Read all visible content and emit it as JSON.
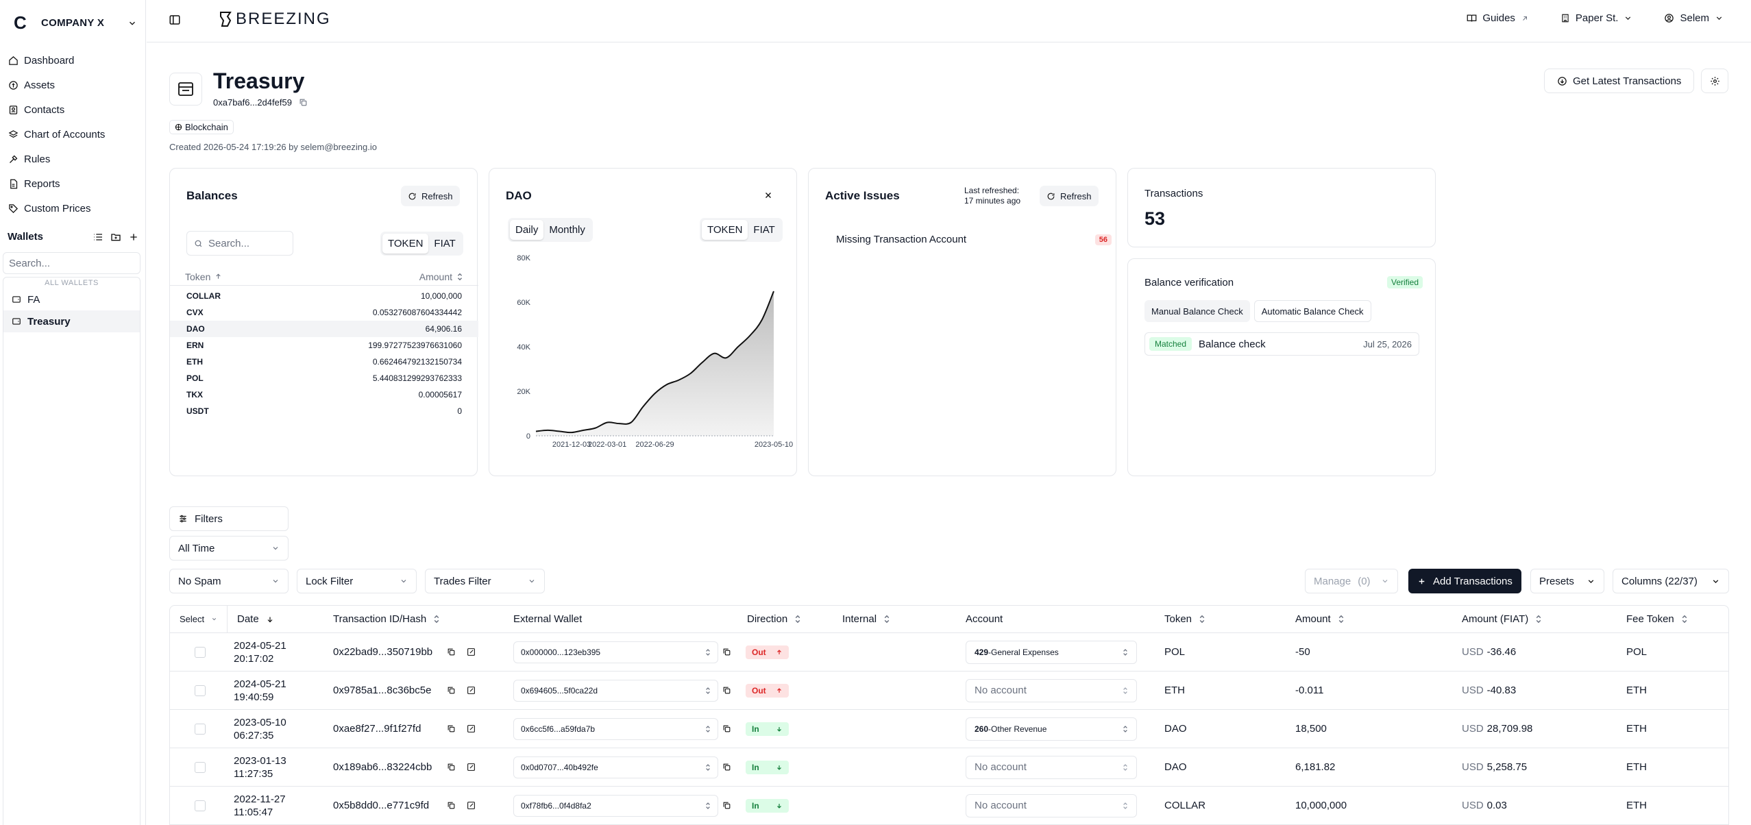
{
  "sidebar": {
    "company_initial": "C",
    "company_name": "COMPANY X",
    "nav": [
      {
        "label": "Dashboard",
        "icon": "home-icon"
      },
      {
        "label": "Assets",
        "icon": "coin-icon"
      },
      {
        "label": "Contacts",
        "icon": "contacts-icon"
      },
      {
        "label": "Chart of Accounts",
        "icon": "layers-icon"
      },
      {
        "label": "Rules",
        "icon": "rules-icon"
      },
      {
        "label": "Reports",
        "icon": "report-icon"
      },
      {
        "label": "Custom Prices",
        "icon": "tag-icon"
      }
    ],
    "wallets_title": "Wallets",
    "search_placeholder": "Search...",
    "all_wallets_label": "ALL WALLETS",
    "wallets": [
      {
        "label": "FA",
        "active": false
      },
      {
        "label": "Treasury",
        "active": true
      }
    ]
  },
  "topbar": {
    "brand": "BREEZING",
    "guides": "Guides",
    "location": "Paper St.",
    "user": "Selem"
  },
  "header": {
    "title": "Treasury",
    "address": "0xa7baf6...2d4fef59",
    "chip": "Blockchain",
    "created": "Created 2026-05-24 17:19:26 by selem@breezing.io",
    "get_latest": "Get Latest Transactions"
  },
  "balances": {
    "title": "Balances",
    "refresh": "Refresh",
    "search_placeholder": "Search...",
    "seg": [
      "TOKEN",
      "FIAT"
    ],
    "col_token": "Token",
    "col_amount": "Amount",
    "rows": [
      {
        "token": "COLLAR",
        "amount": "10,000,000"
      },
      {
        "token": "CVX",
        "amount": "0.053276087604334442"
      },
      {
        "token": "DAO",
        "amount": "64,906.16"
      },
      {
        "token": "ERN",
        "amount": "199.97277523976631060"
      },
      {
        "token": "ETH",
        "amount": "0.662464792132150734"
      },
      {
        "token": "POL",
        "amount": "5.440831299293762333"
      },
      {
        "token": "TKX",
        "amount": "0.00005617"
      },
      {
        "token": "USDT",
        "amount": "0"
      }
    ]
  },
  "dao": {
    "title": "DAO",
    "period": [
      "Daily",
      "Monthly"
    ],
    "seg": [
      "TOKEN",
      "FIAT"
    ]
  },
  "chart_data": {
    "type": "area",
    "title": "DAO",
    "xlabel": "",
    "ylabel": "",
    "x": [
      "2021-09-01",
      "2021-10-01",
      "2021-11-01",
      "2021-12-03",
      "2022-01-01",
      "2022-02-01",
      "2022-03-01",
      "2022-04-01",
      "2022-05-01",
      "2022-06-01",
      "2022-06-29",
      "2022-08-01",
      "2022-09-01",
      "2022-10-01",
      "2022-11-01",
      "2022-12-01",
      "2023-01-13",
      "2023-02-01",
      "2023-03-01",
      "2023-04-01",
      "2023-05-10"
    ],
    "values": [
      2000,
      2500,
      2000,
      1500,
      2500,
      3500,
      6000,
      5500,
      6000,
      13000,
      19000,
      23000,
      25000,
      28000,
      33000,
      37000,
      35000,
      40000,
      45000,
      52000,
      64906
    ],
    "xticks": [
      "2021-12-03",
      "2022-03-01",
      "2022-06-29",
      "2023-05-10"
    ],
    "yticks": [
      "0",
      "20K",
      "40K",
      "60K",
      "80K"
    ],
    "ylim": [
      0,
      80000
    ],
    "grid": false
  },
  "issues": {
    "title": "Active Issues",
    "last_refreshed_label": "Last refreshed:",
    "last_refreshed_value": "17 minutes ago",
    "refresh": "Refresh",
    "items": [
      {
        "label": "Missing Transaction Account",
        "count": "56"
      }
    ]
  },
  "transactions_card": {
    "title": "Transactions",
    "count": "53"
  },
  "verification": {
    "title": "Balance verification",
    "status": "Verified",
    "tabs": [
      "Manual Balance Check",
      "Automatic Balance Check"
    ],
    "item_status": "Matched",
    "item_label": "Balance check",
    "item_date": "Jul 25, 2026"
  },
  "filters": {
    "filters_label": "Filters",
    "time": "All Time",
    "spam": "No Spam",
    "lock": "Lock Filter",
    "trades": "Trades Filter",
    "manage": "Manage",
    "manage_count": "(0)",
    "add": "Add Transactions",
    "presets": "Presets",
    "columns": "Columns (22/37)"
  },
  "table": {
    "headers": {
      "select": "Select",
      "date": "Date",
      "hash": "Transaction ID/Hash",
      "wallet": "External Wallet",
      "direction": "Direction",
      "internal": "Internal",
      "account": "Account",
      "token": "Token",
      "amount": "Amount",
      "fiat": "Amount (FIAT)",
      "fee": "Fee Token"
    },
    "rows": [
      {
        "date": "2024-05-21",
        "time": "20:17:02",
        "hash": "0x22bad9...350719bb",
        "wallet": "0x000000...123eb395",
        "dir": "Out",
        "acct_code": "429",
        "acct_name": "-General Expenses",
        "token": "POL",
        "amount": "-50",
        "fiat_cur": "USD",
        "fiat": "-36.46",
        "fee": "POL"
      },
      {
        "date": "2024-05-21",
        "time": "19:40:59",
        "hash": "0x9785a1...8c36bc5e",
        "wallet": "0x694605...5f0ca22d",
        "dir": "Out",
        "acct_code": "",
        "acct_name": "No account",
        "token": "ETH",
        "amount": "-0.011",
        "fiat_cur": "USD",
        "fiat": "-40.83",
        "fee": "ETH"
      },
      {
        "date": "2023-05-10",
        "time": "06:27:35",
        "hash": "0xae8f27...9f1f27fd",
        "wallet": "0x6cc5f6...a59fda7b",
        "dir": "In",
        "acct_code": "260",
        "acct_name": "-Other Revenue",
        "token": "DAO",
        "amount": "18,500",
        "fiat_cur": "USD",
        "fiat": "28,709.98",
        "fee": "ETH"
      },
      {
        "date": "2023-01-13",
        "time": "11:27:35",
        "hash": "0x189ab6...83224cbb",
        "wallet": "0x0d0707...40b492fe",
        "dir": "In",
        "acct_code": "",
        "acct_name": "No account",
        "token": "DAO",
        "amount": "6,181.82",
        "fiat_cur": "USD",
        "fiat": "5,258.75",
        "fee": "ETH"
      },
      {
        "date": "2022-11-27",
        "time": "11:05:47",
        "hash": "0x5b8dd0...e771c9fd",
        "wallet": "0xf78fb6...0f4d8fa2",
        "dir": "In",
        "acct_code": "",
        "acct_name": "No account",
        "token": "COLLAR",
        "amount": "10,000,000",
        "fiat_cur": "USD",
        "fiat": "0.03",
        "fee": "ETH"
      }
    ]
  }
}
